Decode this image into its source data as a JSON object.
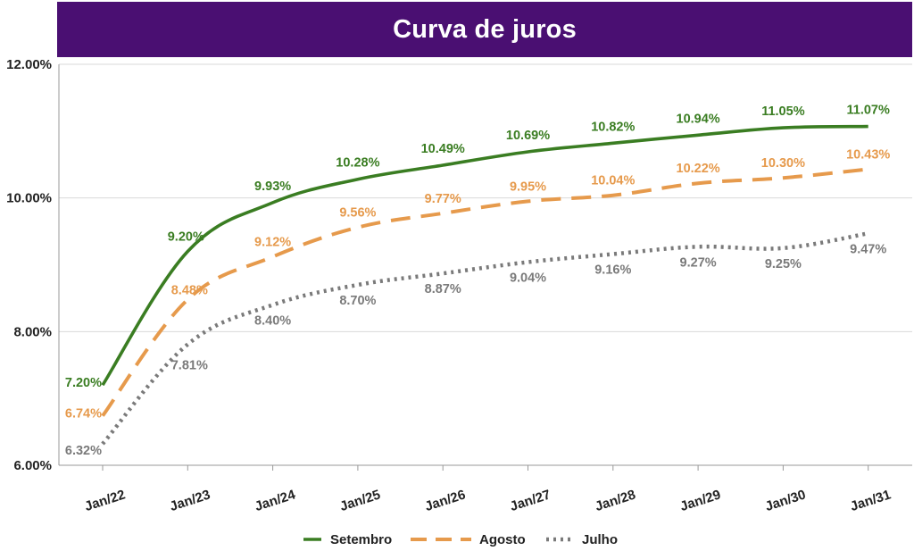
{
  "chart_data": {
    "type": "line",
    "title": "Curva de juros",
    "xlabel": "",
    "ylabel": "",
    "categories": [
      "Jan/22",
      "Jan/23",
      "Jan/24",
      "Jan/25",
      "Jan/26",
      "Jan/27",
      "Jan/28",
      "Jan/29",
      "Jan/30",
      "Jan/31"
    ],
    "ylim": [
      6,
      12
    ],
    "yticks": [
      6,
      8,
      10,
      12
    ],
    "ytick_labels": [
      "6.00%",
      "8.00%",
      "10.00%",
      "12.00%"
    ],
    "grid": true,
    "legend_position": "bottom",
    "series": [
      {
        "name": "Setembro",
        "color": "#3a7d22",
        "style": "solid",
        "values": [
          7.2,
          9.2,
          9.93,
          10.28,
          10.49,
          10.69,
          10.82,
          10.94,
          11.05,
          11.07
        ],
        "labels": [
          "7.20%",
          "9.20%",
          "9.93%",
          "10.28%",
          "10.49%",
          "10.69%",
          "10.82%",
          "10.94%",
          "11.05%",
          "11.07%"
        ]
      },
      {
        "name": "Agosto",
        "color": "#e69a4c",
        "style": "dashed",
        "values": [
          6.74,
          8.48,
          9.12,
          9.56,
          9.77,
          9.95,
          10.04,
          10.22,
          10.3,
          10.43
        ],
        "labels": [
          "6.74%",
          "8.48%",
          "9.12%",
          "9.56%",
          "9.77%",
          "9.95%",
          "10.04%",
          "10.22%",
          "10.30%",
          "10.43%"
        ]
      },
      {
        "name": "Julho",
        "color": "#7a7a7a",
        "style": "dotted",
        "values": [
          6.32,
          7.81,
          8.4,
          8.7,
          8.87,
          9.04,
          9.16,
          9.27,
          9.25,
          9.47
        ],
        "labels": [
          "6.32%",
          "7.81%",
          "8.40%",
          "8.70%",
          "8.87%",
          "9.04%",
          "9.16%",
          "9.27%",
          "9.25%",
          "9.47%"
        ]
      }
    ]
  }
}
